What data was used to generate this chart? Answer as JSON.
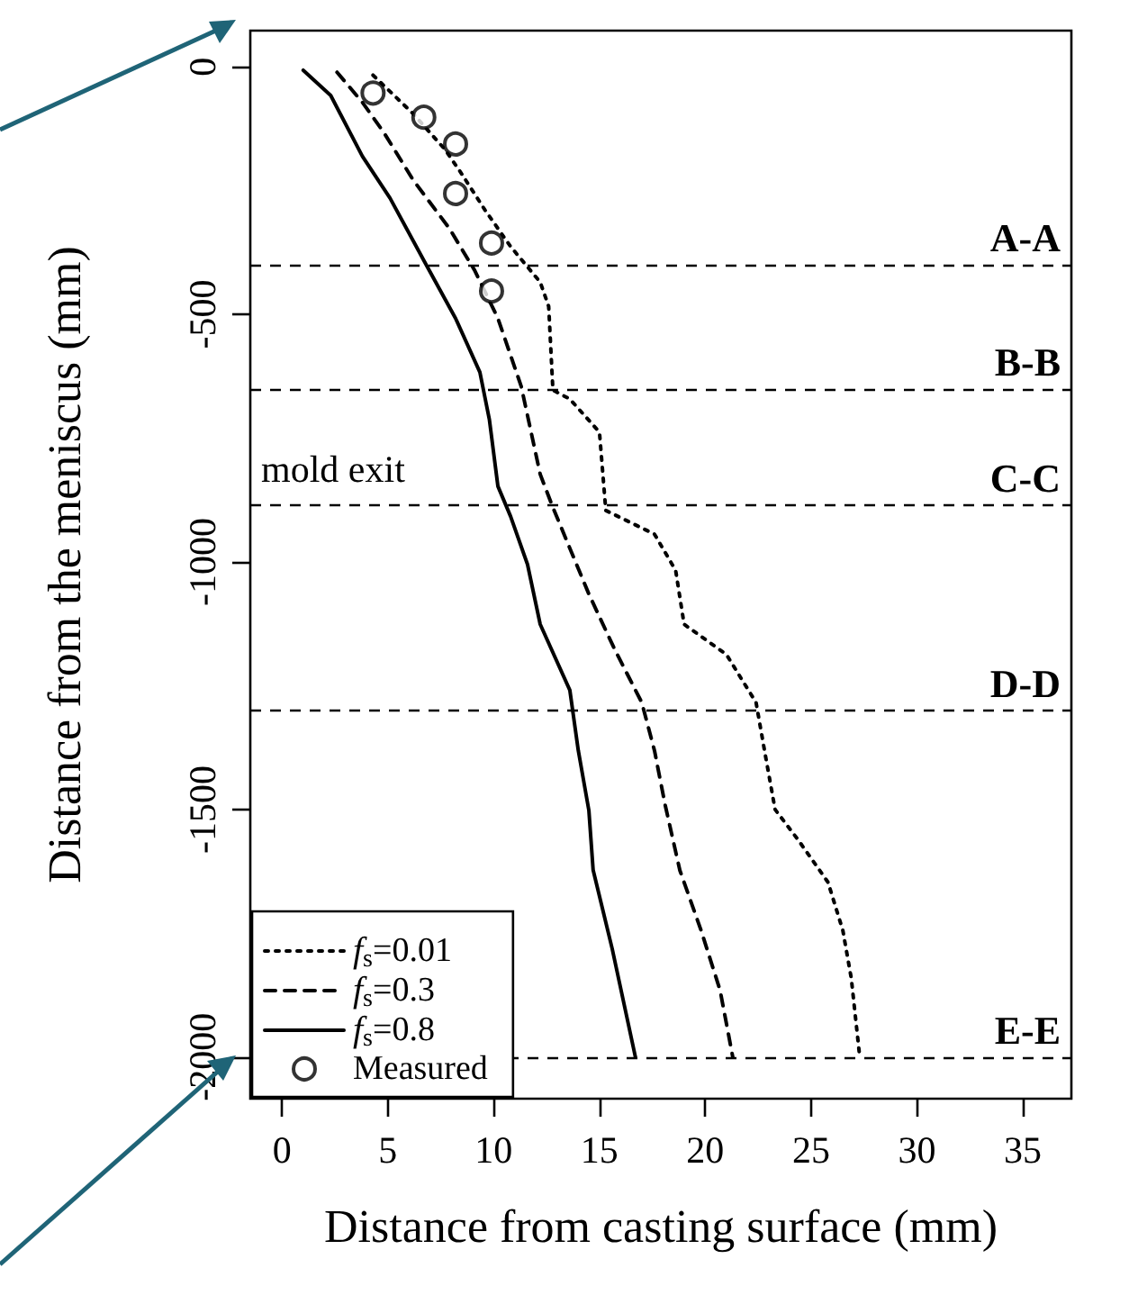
{
  "chart_data": {
    "type": "line",
    "xlabel": "Distance from casting surface (mm)",
    "ylabel": "Distance from the meniscus (mm)",
    "xlim": [
      -1.5,
      37.3
    ],
    "xticks": [
      0,
      5,
      10,
      15,
      20,
      25,
      30,
      35
    ],
    "ylim": [
      -2084,
      73
    ],
    "yticks": [
      0,
      -500,
      -1000,
      -1500,
      -2000
    ],
    "grid": false,
    "legend": "bottom left",
    "annotations": [
      "mold exit"
    ],
    "ref_lines": [
      {
        "axis": "y",
        "value": -400,
        "label": "A-A",
        "line_style": "dashed",
        "color": "#000000"
      },
      {
        "axis": "y",
        "value": -650,
        "label": "B-B",
        "line_style": "dashed",
        "color": "#000000"
      },
      {
        "axis": "y",
        "value": -885,
        "label": "C-C",
        "line_style": "dashed",
        "color": "#000000"
      },
      {
        "axis": "y",
        "value": -1300,
        "label": "D-D",
        "line_style": "dashed",
        "color": "#000000"
      },
      {
        "axis": "y",
        "value": -2000,
        "label": "E-E",
        "line_style": "dashed",
        "color": "#000000"
      }
    ],
    "series": [
      {
        "name": "f$_{s}$=0.01",
        "line_style": "dotted",
        "color": "#000000",
        "x": [
          4.3,
          6.2,
          7.7,
          8.5,
          9.6,
          10.8,
          12.2,
          12.6,
          12.8,
          13.6,
          15.0,
          15.3,
          17.6,
          18.6,
          19.0,
          21.0,
          22.4,
          22.8,
          23.3,
          24.4,
          25.8,
          26.5,
          26.9,
          27.3
        ],
        "values": [
          -17,
          -95,
          -167,
          -217,
          -290,
          -363,
          -435,
          -484,
          -653,
          -671,
          -738,
          -896,
          -944,
          -1017,
          -1126,
          -1187,
          -1284,
          -1381,
          -1500,
          -1562,
          -1647,
          -1744,
          -1841,
          -2000
        ]
      },
      {
        "name": "f$_{s}$=0.3",
        "line_style": "dashed",
        "color": "#000000",
        "x": [
          2.6,
          3.8,
          4.8,
          6.2,
          7.9,
          9.1,
          10.2,
          11.3,
          12.2,
          12.8,
          14.5,
          15.7,
          17.0,
          17.6,
          18.1,
          18.8,
          19.8,
          20.7,
          21.3
        ],
        "values": [
          -11,
          -72,
          -132,
          -229,
          -326,
          -411,
          -508,
          -645,
          -823,
          -890,
          -1065,
          -1175,
          -1284,
          -1381,
          -1490,
          -1623,
          -1744,
          -1865,
          -2000
        ]
      },
      {
        "name": "f$_{s}$=0.8",
        "line_style": "solid",
        "color": "#000000",
        "x": [
          1.0,
          2.3,
          3.8,
          5.1,
          6.8,
          8.2,
          9.35,
          9.8,
          10.2,
          10.8,
          11.6,
          12.2,
          13.6,
          14.0,
          14.5,
          14.7,
          15.6,
          16.7
        ],
        "values": [
          -7,
          -58,
          -181,
          -265,
          -399,
          -508,
          -617,
          -713,
          -847,
          -908,
          -1005,
          -1126,
          -1259,
          -1381,
          -1502,
          -1622,
          -1781,
          -2000
        ]
      },
      {
        "name": "Measured",
        "type": "scatter",
        "marker": "circle",
        "color": "#000000",
        "x": [
          4.3,
          6.7,
          8.2,
          8.2,
          9.9,
          9.9
        ],
        "values": [
          -53,
          -102,
          -156,
          -256,
          -356,
          -453
        ]
      }
    ]
  }
}
